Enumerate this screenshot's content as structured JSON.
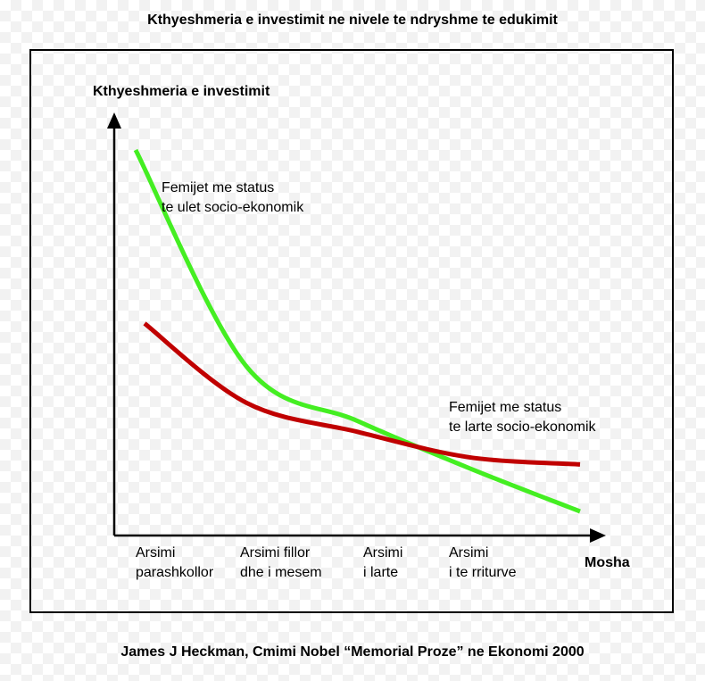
{
  "title": "Kthyeshmeria e investimit ne nivele te ndryshme te edukimit",
  "footer": "James J Heckman, Cmimi Nobel “Memorial Proze” ne Ekonomi 2000",
  "chart_data": {
    "type": "line",
    "ylabel": "Kthyeshmeria e investimit",
    "xlabel": "Mosha",
    "categories": [
      [
        "Arsimi",
        "parashkollor"
      ],
      [
        "Arsimi fillor",
        "dhe i mesem"
      ],
      [
        "Arsimi",
        "i larte"
      ],
      [
        "Arsimi",
        "i te rriturve"
      ]
    ],
    "series": [
      {
        "name": [
          "Femijet me status",
          "te ulet socio-ekonomik"
        ],
        "color": "#44ee22",
        "x": [
          0.0,
          0.25,
          0.5,
          0.75,
          1.0
        ],
        "values": [
          1.0,
          0.4,
          0.25,
          0.12,
          0.0
        ]
      },
      {
        "name": [
          "Femijet me status",
          "te larte socio-ekonomik"
        ],
        "color": "#c00000",
        "x": [
          0.02,
          0.25,
          0.5,
          0.75,
          1.0
        ],
        "values": [
          0.52,
          0.3,
          0.22,
          0.15,
          0.13
        ]
      }
    ],
    "xlim": [
      0,
      1
    ],
    "ylim": [
      0,
      1
    ],
    "grid": false,
    "legend": "inline labels"
  }
}
